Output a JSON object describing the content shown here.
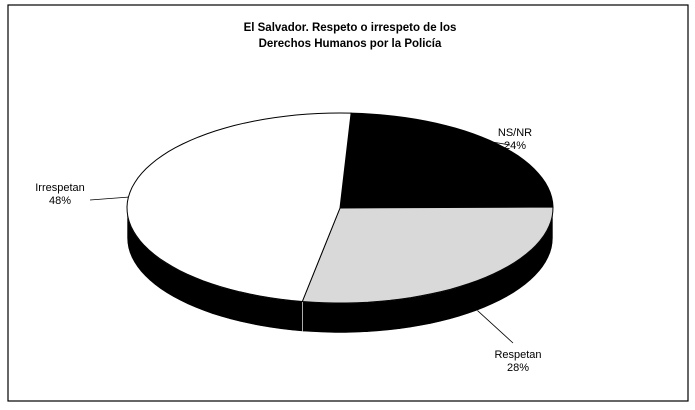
{
  "chart_data": {
    "type": "pie3d",
    "title": [
      "El Salvador. Respeto o irrespeto de los",
      "Derechos Humanos por la Policía"
    ],
    "categories": [
      "NS/NR",
      "Respetan",
      "Irrespetan"
    ],
    "values": [
      24,
      28,
      48
    ],
    "value_labels": [
      "24%",
      "28%",
      "48%"
    ],
    "colors": [
      "#000000",
      "#d9d9d9",
      "#ffffff"
    ],
    "side_color": "#000000"
  }
}
